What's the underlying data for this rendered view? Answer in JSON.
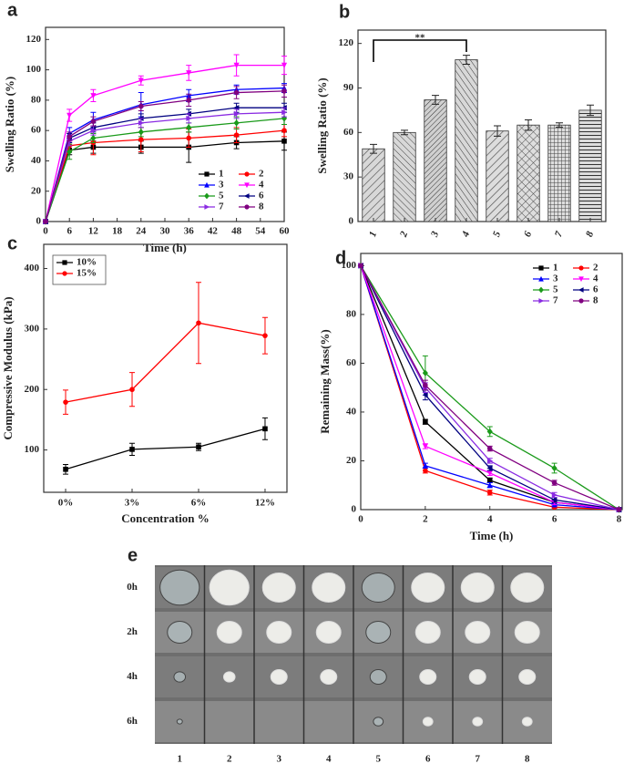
{
  "chart_data": [
    {
      "type": "line",
      "panel": "a",
      "x_label": "Time (h)",
      "y_label": "Swelling Ratio (%)",
      "x": [
        0,
        6,
        12,
        24,
        36,
        48,
        60
      ],
      "xlim": [
        0,
        60
      ],
      "xticks": [
        0,
        6,
        12,
        18,
        24,
        30,
        36,
        42,
        48,
        54,
        60
      ],
      "ylim": [
        0,
        128
      ],
      "yticks": [
        0,
        20,
        40,
        60,
        80,
        100,
        120
      ],
      "legend": "lower right",
      "series": [
        {
          "name": "1",
          "color": "#000000",
          "marker": "square",
          "values": [
            0,
            47,
            49,
            49,
            49,
            52,
            53
          ],
          "errors": [
            0,
            3,
            4,
            4,
            10,
            4,
            6
          ]
        },
        {
          "name": "2",
          "color": "#ff0000",
          "marker": "circle",
          "values": [
            0,
            50,
            52,
            54,
            55,
            57,
            60
          ],
          "errors": [
            0,
            3,
            8,
            8,
            6,
            5,
            4
          ]
        },
        {
          "name": "3",
          "color": "#0000ff",
          "marker": "up",
          "values": [
            0,
            58,
            67,
            77,
            83,
            87,
            88
          ],
          "errors": [
            0,
            4,
            5,
            8,
            4,
            3,
            3
          ]
        },
        {
          "name": "4",
          "color": "#ff00ff",
          "marker": "down",
          "values": [
            0,
            70,
            83,
            93,
            98,
            103,
            103
          ],
          "errors": [
            0,
            4,
            4,
            3,
            5,
            7,
            6
          ]
        },
        {
          "name": "5",
          "color": "#1a9a1a",
          "marker": "diamond",
          "values": [
            0,
            46,
            55,
            59,
            62,
            65,
            68
          ],
          "errors": [
            0,
            5,
            3,
            3,
            3,
            4,
            4
          ]
        },
        {
          "name": "6",
          "color": "#000080",
          "marker": "left",
          "values": [
            0,
            55,
            62,
            68,
            71,
            75,
            75
          ],
          "errors": [
            0,
            3,
            3,
            3,
            3,
            3,
            3
          ]
        },
        {
          "name": "7",
          "color": "#8a2be2",
          "marker": "right",
          "values": [
            0,
            53,
            60,
            65,
            68,
            71,
            72
          ],
          "errors": [
            0,
            3,
            3,
            3,
            3,
            3,
            3
          ]
        },
        {
          "name": "8",
          "color": "#800080",
          "marker": "circle",
          "values": [
            0,
            56,
            66,
            76,
            80,
            85,
            86
          ],
          "errors": [
            0,
            3,
            3,
            3,
            4,
            4,
            4
          ]
        }
      ]
    },
    {
      "type": "bar",
      "panel": "b",
      "y_label": "Swelling Ratio (%)",
      "categories": [
        "1",
        "2",
        "3",
        "4",
        "5",
        "6",
        "7",
        "8"
      ],
      "values": [
        49,
        60,
        82,
        109,
        61,
        65,
        65,
        75
      ],
      "errors": [
        3,
        1.5,
        3,
        3,
        3.5,
        3.5,
        1.5,
        3.5
      ],
      "color": "#b0b0b0",
      "ylim": [
        0,
        129
      ],
      "yticks": [
        0,
        30,
        60,
        90,
        120
      ],
      "annotation": "**"
    },
    {
      "type": "line",
      "panel": "c",
      "x_label": "Concentration %",
      "y_label": "Compressive Modulus (kPa)",
      "categories": [
        "0%",
        "3%",
        "6%",
        "12%"
      ],
      "ylim": [
        30,
        440
      ],
      "yticks": [
        100,
        200,
        300,
        400
      ],
      "legend": "upper left",
      "series": [
        {
          "name": "10%",
          "color": "#000000",
          "marker": "square",
          "values": [
            68,
            101,
            105,
            135
          ],
          "errors": [
            8,
            10,
            6,
            18
          ]
        },
        {
          "name": "15%",
          "color": "#ff0000",
          "marker": "circle",
          "values": [
            179,
            200,
            310,
            289
          ],
          "errors": [
            20,
            28,
            67,
            30
          ]
        }
      ]
    },
    {
      "type": "line",
      "panel": "d",
      "x_label": "Time (h)",
      "y_label": "Remaining Mass(%)",
      "x": [
        0,
        2,
        4,
        6,
        8
      ],
      "xlim": [
        0,
        8.1
      ],
      "xticks": [
        0,
        2,
        4,
        6,
        8
      ],
      "ylim": [
        0,
        105
      ],
      "yticks": [
        0,
        20,
        40,
        60,
        80,
        100
      ],
      "legend": "upper right",
      "series": [
        {
          "name": "1",
          "color": "#000000",
          "marker": "square",
          "values": [
            100,
            36,
            12,
            3,
            0
          ],
          "errors": [
            0,
            1,
            1,
            1,
            0
          ]
        },
        {
          "name": "2",
          "color": "#ff0000",
          "marker": "circle",
          "values": [
            100,
            16,
            7,
            1,
            0
          ],
          "errors": [
            0,
            1,
            1,
            0.5,
            0
          ]
        },
        {
          "name": "3",
          "color": "#0000ff",
          "marker": "up",
          "values": [
            100,
            18,
            10,
            2,
            0
          ],
          "errors": [
            0,
            1,
            1,
            0.5,
            0
          ]
        },
        {
          "name": "4",
          "color": "#ff00ff",
          "marker": "down",
          "values": [
            100,
            26,
            15,
            3,
            0
          ],
          "errors": [
            0,
            1,
            1,
            1,
            0
          ]
        },
        {
          "name": "5",
          "color": "#1a9a1a",
          "marker": "diamond",
          "values": [
            100,
            56,
            32,
            17,
            0
          ],
          "errors": [
            0,
            7,
            2,
            2,
            0
          ]
        },
        {
          "name": "6",
          "color": "#000080",
          "marker": "left",
          "values": [
            100,
            47,
            17,
            4,
            0
          ],
          "errors": [
            0,
            2,
            1,
            1,
            0
          ]
        },
        {
          "name": "7",
          "color": "#8a2be2",
          "marker": "right",
          "values": [
            100,
            50,
            20,
            6,
            0
          ],
          "errors": [
            0,
            2,
            1,
            1,
            0
          ]
        },
        {
          "name": "8",
          "color": "#800080",
          "marker": "circle",
          "values": [
            100,
            51,
            25,
            11,
            0
          ],
          "errors": [
            0,
            2,
            1,
            1,
            0
          ]
        }
      ]
    }
  ],
  "photo": {
    "panel": "e",
    "rows": [
      "0h",
      "2h",
      "4h",
      "6h"
    ],
    "columns": [
      "1",
      "2",
      "3",
      "4",
      "5",
      "6",
      "7",
      "8"
    ]
  }
}
